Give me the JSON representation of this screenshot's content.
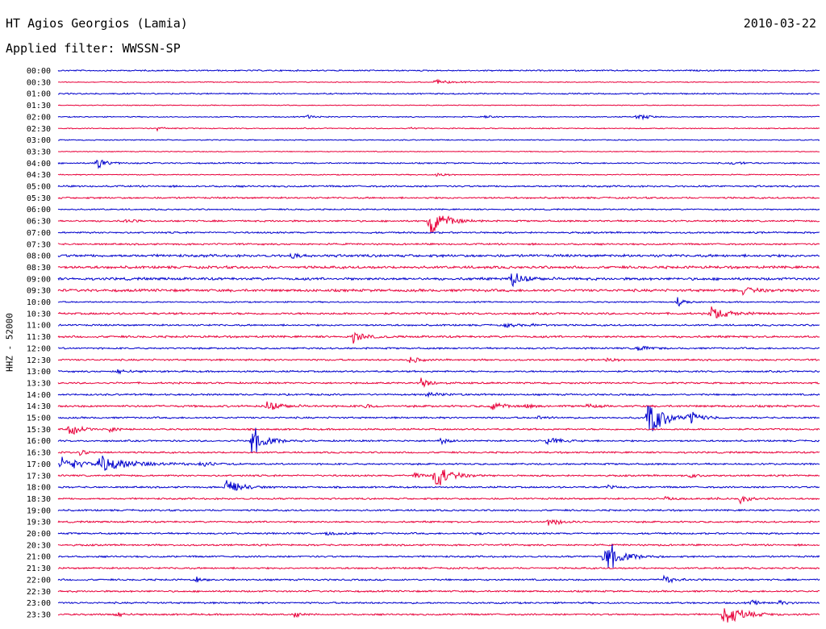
{
  "header": {
    "station": "HT Agios Georgios (Lamia)",
    "date": "2010-03-22",
    "filter": "Applied filter: WWSSN-SP"
  },
  "chart_data": {
    "type": "line",
    "ylabel": "HHZ - 52000",
    "title": "",
    "rows": [
      "00:00",
      "00:30",
      "01:00",
      "01:30",
      "02:00",
      "02:30",
      "03:00",
      "03:30",
      "04:00",
      "04:30",
      "05:00",
      "05:30",
      "06:00",
      "06:30",
      "07:00",
      "07:30",
      "08:00",
      "08:30",
      "09:00",
      "09:30",
      "10:00",
      "10:30",
      "11:00",
      "11:30",
      "12:00",
      "12:30",
      "13:00",
      "13:30",
      "14:00",
      "14:30",
      "15:00",
      "15:30",
      "16:00",
      "16:30",
      "17:00",
      "17:30",
      "18:00",
      "18:30",
      "19:00",
      "19:30",
      "20:00",
      "20:30",
      "21:00",
      "21:30",
      "22:00",
      "22:30",
      "23:00",
      "23:30"
    ],
    "colors": [
      "#0000cc",
      "#e8003a"
    ],
    "x_unit": "minutes into the 30-minute row",
    "events": [
      {
        "row": 1,
        "t": 14.8,
        "amp": 3,
        "dur": 1.2
      },
      {
        "row": 4,
        "t": 9.8,
        "amp": 3,
        "dur": 0.5
      },
      {
        "row": 4,
        "t": 16.8,
        "amp": 2,
        "dur": 0.4
      },
      {
        "row": 4,
        "t": 22.8,
        "amp": 7,
        "dur": 0.5
      },
      {
        "row": 5,
        "t": 3.9,
        "amp": 3,
        "dur": 0.4
      },
      {
        "row": 5,
        "t": 13.8,
        "amp": 1.5,
        "dur": 0.6
      },
      {
        "row": 8,
        "t": 1.5,
        "amp": 8,
        "dur": 0.6
      },
      {
        "row": 8,
        "t": 26.5,
        "amp": 3,
        "dur": 0.6
      },
      {
        "row": 9,
        "t": 14.9,
        "amp": 3,
        "dur": 0.5
      },
      {
        "row": 13,
        "t": 2.6,
        "amp": 3,
        "dur": 0.5
      },
      {
        "row": 13,
        "t": 14.6,
        "amp": 30,
        "dur": 0.8
      },
      {
        "row": 16,
        "t": 9.2,
        "amp": 4,
        "dur": 0.4
      },
      {
        "row": 18,
        "t": 17.8,
        "amp": 12,
        "dur": 0.8
      },
      {
        "row": 19,
        "t": 26.9,
        "amp": 6,
        "dur": 0.7
      },
      {
        "row": 20,
        "t": 24.4,
        "amp": 6,
        "dur": 0.5
      },
      {
        "row": 21,
        "t": 25.7,
        "amp": 12,
        "dur": 0.8
      },
      {
        "row": 22,
        "t": 17.6,
        "amp": 3,
        "dur": 0.6
      },
      {
        "row": 22,
        "t": 18.6,
        "amp": 2,
        "dur": 0.4
      },
      {
        "row": 23,
        "t": 11.6,
        "amp": 9,
        "dur": 0.6
      },
      {
        "row": 24,
        "t": 22.8,
        "amp": 6,
        "dur": 0.5
      },
      {
        "row": 25,
        "t": 13.8,
        "amp": 6,
        "dur": 0.5
      },
      {
        "row": 25,
        "t": 21.6,
        "amp": 3,
        "dur": 0.5
      },
      {
        "row": 26,
        "t": 2.3,
        "amp": 4,
        "dur": 0.6
      },
      {
        "row": 27,
        "t": 14.3,
        "amp": 7,
        "dur": 0.6
      },
      {
        "row": 28,
        "t": 14.5,
        "amp": 3,
        "dur": 1.0
      },
      {
        "row": 29,
        "t": 8.2,
        "amp": 9,
        "dur": 0.8
      },
      {
        "row": 29,
        "t": 12.1,
        "amp": 3,
        "dur": 0.5
      },
      {
        "row": 29,
        "t": 17.1,
        "amp": 9,
        "dur": 0.5
      },
      {
        "row": 29,
        "t": 18.4,
        "amp": 3,
        "dur": 0.5
      },
      {
        "row": 29,
        "t": 20.8,
        "amp": 3,
        "dur": 0.5
      },
      {
        "row": 30,
        "t": 23.2,
        "amp": 38,
        "dur": 0.8
      },
      {
        "row": 30,
        "t": 24.8,
        "amp": 10,
        "dur": 0.7
      },
      {
        "row": 30,
        "t": 18.9,
        "amp": 3,
        "dur": 0.5
      },
      {
        "row": 31,
        "t": 0.4,
        "amp": 10,
        "dur": 0.6
      },
      {
        "row": 31,
        "t": 2.0,
        "amp": 4,
        "dur": 0.4
      },
      {
        "row": 32,
        "t": 7.6,
        "amp": 25,
        "dur": 0.7
      },
      {
        "row": 32,
        "t": 15.0,
        "amp": 5,
        "dur": 0.5
      },
      {
        "row": 32,
        "t": 19.2,
        "amp": 8,
        "dur": 0.6
      },
      {
        "row": 33,
        "t": 0.8,
        "amp": 4,
        "dur": 0.6
      },
      {
        "row": 34,
        "t": 0.1,
        "amp": 12,
        "dur": 1.0
      },
      {
        "row": 34,
        "t": 1.6,
        "amp": 12,
        "dur": 2.0
      },
      {
        "row": 34,
        "t": 5.6,
        "amp": 4,
        "dur": 0.5
      },
      {
        "row": 35,
        "t": 14.8,
        "amp": 22,
        "dur": 0.8
      },
      {
        "row": 35,
        "t": 14.0,
        "amp": 5,
        "dur": 0.5
      },
      {
        "row": 35,
        "t": 24.9,
        "amp": 3,
        "dur": 0.4
      },
      {
        "row": 36,
        "t": 6.6,
        "amp": 18,
        "dur": 0.7
      },
      {
        "row": 36,
        "t": 21.6,
        "amp": 3,
        "dur": 0.4
      },
      {
        "row": 37,
        "t": 23.9,
        "amp": 3,
        "dur": 0.4
      },
      {
        "row": 37,
        "t": 25.6,
        "amp": 3,
        "dur": 0.4
      },
      {
        "row": 37,
        "t": 26.8,
        "amp": 9,
        "dur": 0.5
      },
      {
        "row": 39,
        "t": 19.3,
        "amp": 8,
        "dur": 0.6
      },
      {
        "row": 40,
        "t": 10.5,
        "amp": 3,
        "dur": 0.8
      },
      {
        "row": 40,
        "t": 16.5,
        "amp": 3,
        "dur": 0.4
      },
      {
        "row": 42,
        "t": 21.5,
        "amp": 30,
        "dur": 0.8
      },
      {
        "row": 44,
        "t": 5.4,
        "amp": 4,
        "dur": 0.4
      },
      {
        "row": 44,
        "t": 23.8,
        "amp": 7,
        "dur": 0.6
      },
      {
        "row": 46,
        "t": 27.3,
        "amp": 4,
        "dur": 0.4
      },
      {
        "row": 46,
        "t": 28.4,
        "amp": 4,
        "dur": 0.4
      },
      {
        "row": 47,
        "t": 2.3,
        "amp": 5,
        "dur": 0.4
      },
      {
        "row": 47,
        "t": 9.3,
        "amp": 5,
        "dur": 0.4
      },
      {
        "row": 47,
        "t": 26.2,
        "amp": 18,
        "dur": 1.0
      }
    ],
    "noise": [
      0.8,
      0.5,
      0.8,
      0.5,
      0.6,
      0.6,
      0.6,
      0.5,
      0.8,
      0.6,
      1.0,
      1.0,
      0.8,
      1.0,
      1.0,
      1.0,
      1.5,
      1.5,
      1.5,
      1.5,
      0.8,
      1.2,
      1.0,
      1.2,
      1.0,
      1.0,
      1.0,
      1.0,
      1.0,
      1.2,
      1.0,
      1.0,
      1.0,
      1.0,
      1.0,
      1.0,
      1.0,
      1.0,
      1.0,
      1.0,
      1.0,
      1.0,
      1.0,
      1.0,
      1.0,
      1.0,
      1.0,
      1.0
    ]
  }
}
